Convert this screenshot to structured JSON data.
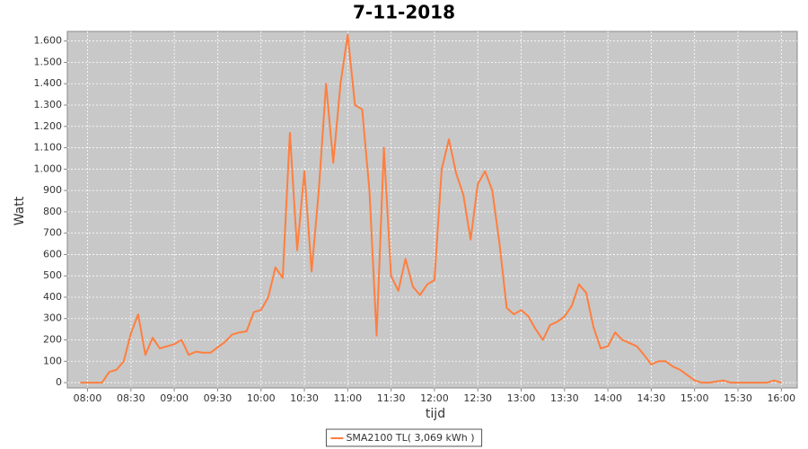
{
  "chart_data": {
    "type": "line",
    "title": "7-11-2018",
    "x_label": "tijd",
    "y_label": "Watt",
    "x": [
      "07:55",
      "08:00",
      "08:05",
      "08:10",
      "08:15",
      "08:20",
      "08:25",
      "08:30",
      "08:35",
      "08:40",
      "08:45",
      "08:50",
      "08:55",
      "09:00",
      "09:05",
      "09:10",
      "09:15",
      "09:20",
      "09:25",
      "09:30",
      "09:35",
      "09:40",
      "09:45",
      "09:50",
      "09:55",
      "10:00",
      "10:05",
      "10:10",
      "10:15",
      "10:20",
      "10:25",
      "10:30",
      "10:35",
      "10:40",
      "10:45",
      "10:50",
      "10:55",
      "11:00",
      "11:05",
      "11:10",
      "11:15",
      "11:20",
      "11:25",
      "11:30",
      "11:35",
      "11:40",
      "11:45",
      "11:50",
      "11:55",
      "12:00",
      "12:05",
      "12:10",
      "12:15",
      "12:20",
      "12:25",
      "12:30",
      "12:35",
      "12:40",
      "12:45",
      "12:50",
      "12:55",
      "13:00",
      "13:05",
      "13:10",
      "13:15",
      "13:20",
      "13:25",
      "13:30",
      "13:35",
      "13:40",
      "13:45",
      "13:50",
      "13:55",
      "14:00",
      "14:05",
      "14:10",
      "14:15",
      "14:20",
      "14:25",
      "14:30",
      "14:35",
      "14:40",
      "14:45",
      "14:50",
      "14:55",
      "15:00",
      "15:05",
      "15:10",
      "15:15",
      "15:20",
      "15:25",
      "15:30",
      "15:35",
      "15:40",
      "15:45",
      "15:50",
      "15:55",
      "16:00"
    ],
    "series": [
      {
        "name": "SMA2100 TL( 3,069 kWh )",
        "color": "#ff7f3f",
        "values": [
          0,
          0,
          0,
          0,
          50,
          60,
          100,
          230,
          320,
          130,
          210,
          160,
          170,
          180,
          200,
          130,
          145,
          140,
          140,
          165,
          190,
          225,
          235,
          240,
          330,
          340,
          400,
          540,
          490,
          1170,
          620,
          990,
          520,
          900,
          1400,
          1030,
          1400,
          1630,
          1300,
          1280,
          900,
          220,
          1100,
          500,
          430,
          580,
          450,
          410,
          460,
          480,
          1000,
          1140,
          980,
          880,
          670,
          930,
          990,
          900,
          650,
          350,
          320,
          340,
          310,
          250,
          200,
          270,
          285,
          310,
          360,
          460,
          420,
          260,
          160,
          170,
          235,
          200,
          185,
          170,
          130,
          85,
          100,
          100,
          75,
          60,
          35,
          10,
          0,
          0,
          5,
          10,
          0,
          0,
          0,
          0,
          0,
          0,
          10,
          0
        ]
      }
    ],
    "xlim": [
      "07:46",
      "16:11"
    ],
    "xticks": [
      "08:00",
      "08:30",
      "09:00",
      "09:30",
      "10:00",
      "10:30",
      "11:00",
      "11:30",
      "12:00",
      "12:30",
      "13:00",
      "13:30",
      "14:00",
      "14:30",
      "15:00",
      "15:30",
      "16:00"
    ],
    "ylim": [
      -25,
      1645
    ],
    "yticks": [
      0,
      100,
      200,
      300,
      400,
      500,
      600,
      700,
      800,
      900,
      {
        "value": 1000,
        "label": "1.000"
      },
      {
        "value": 1100,
        "label": "1.100"
      },
      {
        "value": 1200,
        "label": "1.200"
      },
      {
        "value": 1300,
        "label": "1.300"
      },
      {
        "value": 1400,
        "label": "1.400"
      },
      {
        "value": 1500,
        "label": "1.500"
      },
      {
        "value": 1600,
        "label": "1.600"
      }
    ],
    "grid": true,
    "background": "#c8c8c8"
  }
}
